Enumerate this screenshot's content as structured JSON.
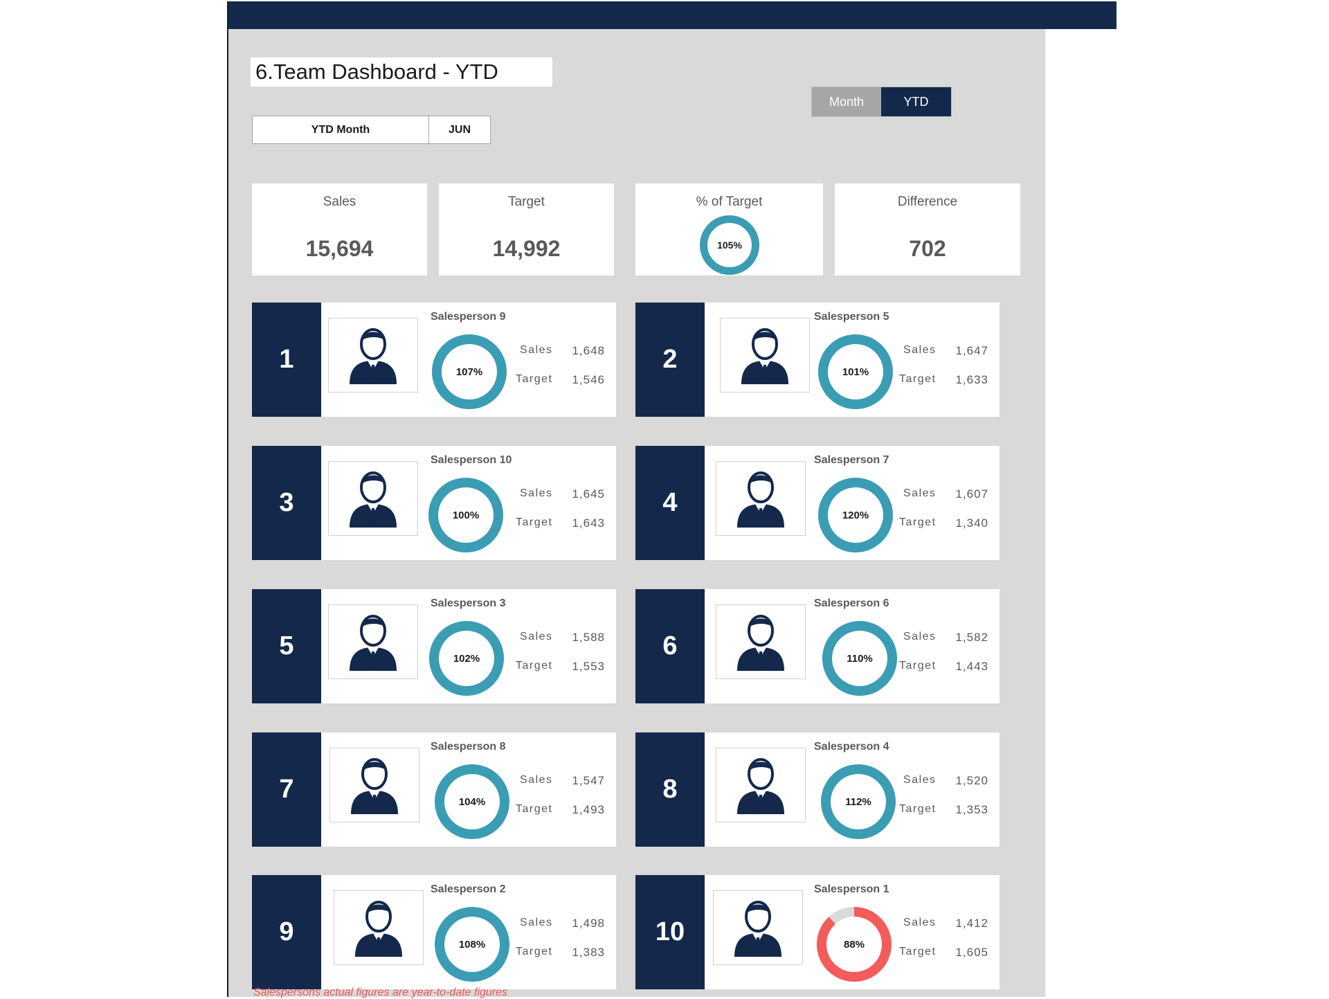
{
  "title": "6.Team Dashboard - YTD",
  "ytd_month": {
    "label": "YTD Month",
    "value": "JUN"
  },
  "toggle": {
    "month_label": "Month",
    "ytd_label": "YTD",
    "active": "YTD"
  },
  "kpis": {
    "sales": {
      "label": "Sales",
      "value": "15,694"
    },
    "target": {
      "label": "Target",
      "value": "14,992"
    },
    "pct": {
      "label": "% of Target",
      "value": "105%",
      "fraction": 1.05
    },
    "difference": {
      "label": "Difference",
      "value": "702"
    }
  },
  "colors": {
    "navy": "#13284b",
    "teal": "#3a9db4",
    "red": "#f45b5b",
    "grey": "#d9d9d9"
  },
  "labels": {
    "sales": "Sales",
    "target": "Target"
  },
  "salespersons": [
    {
      "rank": "1",
      "name": "Salesperson 9",
      "sales": "1,648",
      "target": "1,546",
      "pct": "107%",
      "fraction": 1.07,
      "icon": "person-suit-icon"
    },
    {
      "rank": "2",
      "name": "Salesperson 5",
      "sales": "1,647",
      "target": "1,633",
      "pct": "101%",
      "fraction": 1.01,
      "icon": "person-glasses-bowtie-icon"
    },
    {
      "rank": "3",
      "name": "Salesperson 10",
      "sales": "1,645",
      "target": "1,643",
      "pct": "100%",
      "fraction": 1.0,
      "icon": "person-casual-icon"
    },
    {
      "rank": "4",
      "name": "Salesperson 7",
      "sales": "1,607",
      "target": "1,340",
      "pct": "120%",
      "fraction": 1.2,
      "icon": "person-beard-icon"
    },
    {
      "rank": "5",
      "name": "Salesperson 3",
      "sales": "1,588",
      "target": "1,553",
      "pct": "102%",
      "fraction": 1.02,
      "icon": "person-glasses-tie-icon"
    },
    {
      "rank": "6",
      "name": "Salesperson 6",
      "sales": "1,582",
      "target": "1,443",
      "pct": "110%",
      "fraction": 1.1,
      "icon": "person-tie-icon"
    },
    {
      "rank": "7",
      "name": "Salesperson 8",
      "sales": "1,547",
      "target": "1,493",
      "pct": "104%",
      "fraction": 1.04,
      "icon": "person-bun-icon"
    },
    {
      "rank": "8",
      "name": "Salesperson 4",
      "sales": "1,520",
      "target": "1,353",
      "pct": "112%",
      "fraction": 1.12,
      "icon": "person-suit-icon"
    },
    {
      "rank": "9",
      "name": "Salesperson 2",
      "sales": "1,498",
      "target": "1,383",
      "pct": "108%",
      "fraction": 1.08,
      "icon": "person-curly-icon"
    },
    {
      "rank": "10",
      "name": "Salesperson 1",
      "sales": "1,412",
      "target": "1,605",
      "pct": "88%",
      "fraction": 0.88,
      "icon": "person-glasses-icon"
    }
  ],
  "footnote": "Salespersons actual figures are year-to-date figures"
}
